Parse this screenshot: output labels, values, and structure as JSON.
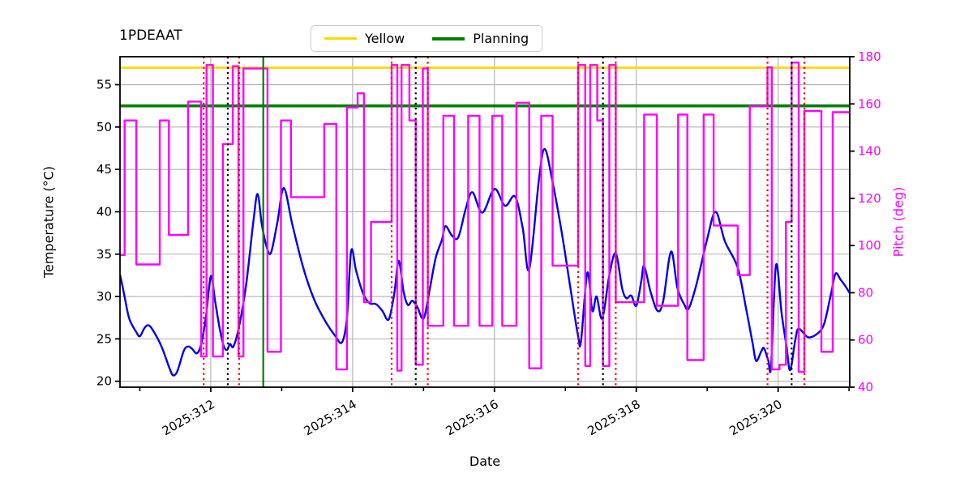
{
  "title": "1PDEAAT",
  "legend": {
    "entries": [
      {
        "label": "Yellow",
        "color": "#FFD700",
        "thickness": 3
      },
      {
        "label": "Planning",
        "color": "#008000",
        "thickness": 4
      }
    ]
  },
  "axes": {
    "x": {
      "label": "Date",
      "range": [
        310.72,
        321.01
      ],
      "major_ticks": [
        {
          "day": 312,
          "label": "2025:312"
        },
        {
          "day": 314,
          "label": "2025:314"
        },
        {
          "day": 316,
          "label": "2025:316"
        },
        {
          "day": 318,
          "label": "2025:318"
        },
        {
          "day": 320,
          "label": "2025:320"
        }
      ],
      "minor_tick_days": [
        311,
        313,
        315,
        317,
        319,
        321
      ]
    },
    "y_left": {
      "label": "Temperature (°C)",
      "range": [
        19.3,
        58.3
      ],
      "ticks": [
        20,
        25,
        30,
        35,
        40,
        45,
        50,
        55
      ],
      "color": "#000000"
    },
    "y_right": {
      "label": "Pitch (deg)",
      "range": [
        40,
        180
      ],
      "ticks": [
        40,
        60,
        80,
        100,
        120,
        140,
        160,
        180
      ],
      "color": "#FF00FF"
    }
  },
  "style": {
    "grid_color": "#b0b0b0",
    "spine_color": "#000000",
    "background": "#ffffff",
    "temperature_color": "#0000EE",
    "pitch_color": "#FF00FF",
    "yellow_limit_color": "#FFD700",
    "planning_limit_color": "#008000",
    "red_vline_color": "#FF0000",
    "black_vline_color": "#000000",
    "green_vline_color": "#008000"
  },
  "chart_data": {
    "type": "line",
    "title": "1PDEAAT",
    "xlabel": "Date",
    "ylabel_left": "Temperature (°C)",
    "ylabel_right": "Pitch (deg)",
    "xlim": [
      310.72,
      321.01
    ],
    "ylim_left": [
      19.3,
      58.3
    ],
    "ylim_right": [
      40,
      180
    ],
    "grid": true,
    "legend_position": "upper center",
    "limit_lines": [
      {
        "name": "yellow-limit",
        "value": 57.0,
        "axis": "left",
        "color": "#FFD700",
        "width": 2.6
      },
      {
        "name": "planning-limit",
        "value": 52.5,
        "axis": "left",
        "color": "#008000",
        "width": 3.6
      }
    ],
    "vlines": [
      {
        "day": 311.9,
        "color": "#FF0000",
        "style": "dotted"
      },
      {
        "day": 312.24,
        "color": "#000000",
        "style": "dotted"
      },
      {
        "day": 312.4,
        "color": "#FF0000",
        "style": "dotted"
      },
      {
        "day": 312.74,
        "color": "#008000",
        "style": "solid"
      },
      {
        "day": 314.55,
        "color": "#FF0000",
        "style": "dotted"
      },
      {
        "day": 314.89,
        "color": "#000000",
        "style": "dotted"
      },
      {
        "day": 315.06,
        "color": "#FF0000",
        "style": "dotted"
      },
      {
        "day": 317.18,
        "color": "#FF0000",
        "style": "dotted"
      },
      {
        "day": 317.53,
        "color": "#000000",
        "style": "dotted"
      },
      {
        "day": 317.71,
        "color": "#FF0000",
        "style": "dotted"
      },
      {
        "day": 319.85,
        "color": "#FF0000",
        "style": "dotted"
      },
      {
        "day": 320.19,
        "color": "#000000",
        "style": "dotted"
      },
      {
        "day": 320.37,
        "color": "#FF0000",
        "style": "dotted"
      }
    ],
    "series": [
      {
        "name": "temperature",
        "axis": "left",
        "color": "#0000EE",
        "width": 2.4,
        "style": "smooth",
        "points": [
          [
            310.72,
            32.6
          ],
          [
            310.78,
            30.2
          ],
          [
            310.85,
            27.4
          ],
          [
            310.95,
            25.8
          ],
          [
            311.0,
            25.3
          ],
          [
            311.06,
            26.2
          ],
          [
            311.11,
            26.6
          ],
          [
            311.17,
            26.2
          ],
          [
            311.3,
            24.2
          ],
          [
            311.42,
            21.5
          ],
          [
            311.47,
            20.7
          ],
          [
            311.53,
            21.2
          ],
          [
            311.62,
            23.6
          ],
          [
            311.68,
            24.1
          ],
          [
            311.74,
            23.8
          ],
          [
            311.8,
            23.3
          ],
          [
            311.86,
            24.2
          ],
          [
            311.93,
            27.5
          ],
          [
            312.0,
            32.4
          ],
          [
            312.06,
            29.5
          ],
          [
            312.12,
            26.5
          ],
          [
            312.18,
            24.2
          ],
          [
            312.23,
            23.7
          ],
          [
            312.27,
            24.4
          ],
          [
            312.32,
            24.1
          ],
          [
            312.4,
            26.5
          ],
          [
            312.5,
            31.5
          ],
          [
            312.6,
            38.8
          ],
          [
            312.66,
            42.1
          ],
          [
            312.72,
            38.5
          ],
          [
            312.79,
            35.8
          ],
          [
            312.85,
            35.2
          ],
          [
            312.94,
            38.8
          ],
          [
            313.03,
            42.8
          ],
          [
            313.15,
            38.5
          ],
          [
            313.3,
            33.5
          ],
          [
            313.45,
            29.8
          ],
          [
            313.6,
            27.3
          ],
          [
            313.75,
            25.4
          ],
          [
            313.85,
            24.6
          ],
          [
            313.92,
            27.5
          ],
          [
            313.98,
            35.4
          ],
          [
            314.05,
            33.0
          ],
          [
            314.15,
            30.3
          ],
          [
            314.24,
            29.2
          ],
          [
            314.33,
            29.1
          ],
          [
            314.42,
            28.3
          ],
          [
            314.51,
            27.3
          ],
          [
            314.59,
            30.5
          ],
          [
            314.65,
            34.2
          ],
          [
            314.72,
            30.5
          ],
          [
            314.78,
            29.0
          ],
          [
            314.84,
            29.5
          ],
          [
            314.91,
            28.8
          ],
          [
            315.0,
            27.4
          ],
          [
            315.08,
            30.5
          ],
          [
            315.17,
            34.5
          ],
          [
            315.26,
            36.7
          ],
          [
            315.31,
            38.3
          ],
          [
            315.4,
            37.2
          ],
          [
            315.49,
            37.0
          ],
          [
            315.6,
            40.5
          ],
          [
            315.69,
            42.3
          ],
          [
            315.83,
            39.9
          ],
          [
            316.0,
            42.7
          ],
          [
            316.15,
            40.7
          ],
          [
            316.29,
            41.8
          ],
          [
            316.4,
            38.0
          ],
          [
            316.49,
            33.2
          ],
          [
            316.63,
            44.0
          ],
          [
            316.71,
            47.4
          ],
          [
            316.82,
            43.5
          ],
          [
            316.95,
            37.5
          ],
          [
            317.08,
            30.5
          ],
          [
            317.18,
            25.3
          ],
          [
            317.22,
            24.7
          ],
          [
            317.31,
            32.8
          ],
          [
            317.38,
            28.3
          ],
          [
            317.44,
            30.0
          ],
          [
            317.52,
            27.4
          ],
          [
            317.62,
            32.5
          ],
          [
            317.71,
            35.1
          ],
          [
            317.8,
            31.0
          ],
          [
            317.86,
            29.8
          ],
          [
            317.93,
            30.1
          ],
          [
            318.0,
            28.9
          ],
          [
            318.07,
            31.8
          ],
          [
            318.11,
            33.6
          ],
          [
            318.2,
            30.6
          ],
          [
            318.3,
            28.3
          ],
          [
            318.38,
            29.5
          ],
          [
            318.49,
            35.3
          ],
          [
            318.58,
            31.0
          ],
          [
            318.68,
            29.0
          ],
          [
            318.74,
            28.6
          ],
          [
            318.85,
            31.5
          ],
          [
            319.0,
            36.8
          ],
          [
            319.12,
            40.0
          ],
          [
            319.25,
            36.5
          ],
          [
            319.43,
            33.4
          ],
          [
            319.55,
            28.5
          ],
          [
            319.64,
            24.5
          ],
          [
            319.69,
            22.4
          ],
          [
            319.76,
            23.5
          ],
          [
            319.8,
            23.9
          ],
          [
            319.86,
            22.5
          ],
          [
            319.9,
            21.8
          ],
          [
            319.97,
            33.7
          ],
          [
            320.05,
            28.0
          ],
          [
            320.12,
            24.0
          ],
          [
            320.17,
            21.3
          ],
          [
            320.24,
            24.8
          ],
          [
            320.29,
            26.2
          ],
          [
            320.42,
            25.2
          ],
          [
            320.55,
            25.6
          ],
          [
            320.65,
            26.8
          ],
          [
            320.75,
            30.5
          ],
          [
            320.81,
            32.7
          ],
          [
            320.88,
            32.0
          ],
          [
            320.95,
            31.2
          ],
          [
            321.01,
            30.4
          ]
        ]
      },
      {
        "name": "pitch",
        "axis": "right",
        "color": "#FF00FF",
        "width": 2.4,
        "style": "step",
        "points": [
          [
            310.72,
            96
          ],
          [
            310.785,
            153
          ],
          [
            310.95,
            92
          ],
          [
            311.28,
            153
          ],
          [
            311.41,
            104.5
          ],
          [
            311.68,
            161
          ],
          [
            311.865,
            53
          ],
          [
            311.94,
            176.5
          ],
          [
            312.03,
            53
          ],
          [
            312.17,
            143
          ],
          [
            312.31,
            176
          ],
          [
            312.39,
            53
          ],
          [
            312.46,
            175
          ],
          [
            312.8,
            55
          ],
          [
            312.99,
            153
          ],
          [
            313.13,
            120.5
          ],
          [
            313.6,
            151.5
          ],
          [
            313.77,
            47.5
          ],
          [
            313.92,
            158.5
          ],
          [
            314.07,
            164.5
          ],
          [
            314.16,
            76
          ],
          [
            314.26,
            110
          ],
          [
            314.55,
            176.5
          ],
          [
            314.63,
            47
          ],
          [
            314.69,
            176.5
          ],
          [
            314.8,
            153
          ],
          [
            314.89,
            49.5
          ],
          [
            314.99,
            175
          ],
          [
            315.06,
            66
          ],
          [
            315.28,
            155
          ],
          [
            315.43,
            66
          ],
          [
            315.63,
            155
          ],
          [
            315.79,
            66
          ],
          [
            315.97,
            155
          ],
          [
            316.11,
            66
          ],
          [
            316.31,
            160.5
          ],
          [
            316.49,
            48
          ],
          [
            316.66,
            155
          ],
          [
            316.82,
            91.5
          ],
          [
            317.18,
            176.5
          ],
          [
            317.28,
            49
          ],
          [
            317.35,
            176.5
          ],
          [
            317.45,
            153
          ],
          [
            317.53,
            49
          ],
          [
            317.62,
            176.5
          ],
          [
            317.71,
            76
          ],
          [
            318.11,
            155.5
          ],
          [
            318.29,
            74.5
          ],
          [
            318.59,
            155.5
          ],
          [
            318.72,
            51.5
          ],
          [
            318.95,
            155.5
          ],
          [
            319.09,
            108.5
          ],
          [
            319.43,
            87.5
          ],
          [
            319.6,
            159
          ],
          [
            319.85,
            175.5
          ],
          [
            319.91,
            47.5
          ],
          [
            320.02,
            49.5
          ],
          [
            320.11,
            110
          ],
          [
            320.19,
            177.5
          ],
          [
            320.29,
            46.5
          ],
          [
            320.37,
            157
          ],
          [
            320.61,
            55
          ],
          [
            320.77,
            156.5
          ]
        ]
      }
    ]
  }
}
